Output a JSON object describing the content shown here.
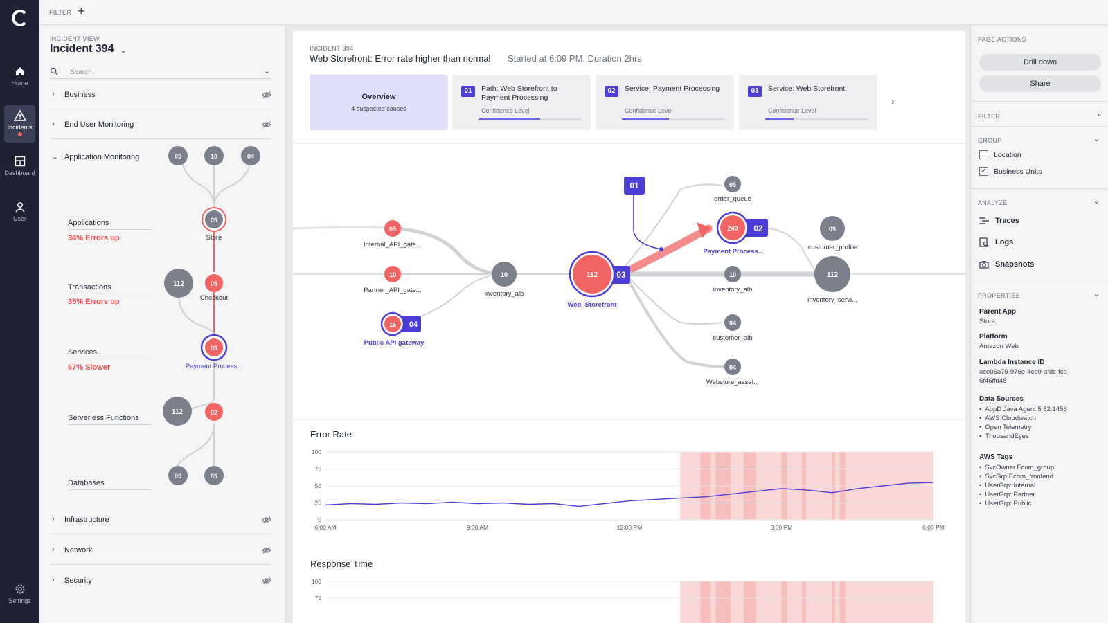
{
  "rail": {
    "items": [
      {
        "label": "Home",
        "icon": "home-icon"
      },
      {
        "label": "Incidents",
        "icon": "warning-icon",
        "active": true
      },
      {
        "label": "Dashboard",
        "icon": "dashboard-icon"
      },
      {
        "label": "User",
        "icon": "user-icon"
      }
    ],
    "settings_label": "Settings"
  },
  "topbar": {
    "filter_label": "FILTER",
    "add_symbol": "+"
  },
  "tree": {
    "view_label": "INCIDENT VIEW",
    "title": "Incident 394",
    "search_placeholder": "Search",
    "sections_top": [
      {
        "label": "Business",
        "collapsed": true,
        "hidden": true
      },
      {
        "label": "End User Monitoring",
        "collapsed": true,
        "hidden": true
      }
    ],
    "app_monitoring_label": "Application Monitoring",
    "tiers": [
      {
        "name": "Applications",
        "stat": "34% Errors up"
      },
      {
        "name": "Transactions",
        "stat": "35% Errors up"
      },
      {
        "name": "Services",
        "stat": "67% Slower"
      },
      {
        "name": "Serverless Functions",
        "stat": ""
      },
      {
        "name": "Databases",
        "stat": ""
      }
    ],
    "tree_nodes": {
      "top": [
        "05",
        "10",
        "04"
      ],
      "store": {
        "value": "05",
        "label": "Store"
      },
      "transactions_grey": "112",
      "checkout": {
        "value": "05",
        "label": "Checkout"
      },
      "payment": {
        "value": "05",
        "label": "Payment Process..."
      },
      "serverless_grey": "112",
      "serverless_red": "02",
      "db": [
        "05",
        "05"
      ]
    },
    "sections_bottom": [
      {
        "label": "Infrastructure",
        "collapsed": true,
        "hidden": true
      },
      {
        "label": "Network",
        "collapsed": true,
        "hidden": true
      },
      {
        "label": "Security",
        "collapsed": true,
        "hidden": true
      }
    ]
  },
  "main": {
    "incident_no": "INCIDENT 394",
    "title": "Web Storefront: Error rate higher than normal",
    "subtitle": "Started at 6:09 PM. Duration 2hrs",
    "overview": {
      "title": "Overview",
      "sub": "4 suspected causes"
    },
    "cards": [
      {
        "badge": "01",
        "head": "Path: Web Storefront to Payment Processing",
        "conf_label": "Confidence Level",
        "confidence": 0.6
      },
      {
        "badge": "02",
        "head": "Service: Payment Processing",
        "conf_label": "Confidence Level",
        "confidence": 0.46
      },
      {
        "badge": "03",
        "head": "Service: Web Storefront",
        "conf_label": "Confidence Level",
        "confidence": 0.28
      }
    ],
    "graph": {
      "nodes": [
        {
          "id": "internal",
          "value": "05",
          "label": "Internal_API_gate...",
          "kind": "red-small"
        },
        {
          "id": "partner",
          "value": "10",
          "label": "Partner_API_gate...",
          "kind": "red-small"
        },
        {
          "id": "public",
          "value": "16",
          "label": "Public API gateway",
          "kind": "red-ring",
          "badge": "04"
        },
        {
          "id": "inv_alb_l",
          "value": "10",
          "label": "inventory_alb",
          "kind": "grey"
        },
        {
          "id": "web",
          "value": "112",
          "label": "Web_Storefront",
          "kind": "red-big",
          "badge": "03"
        },
        {
          "id": "order",
          "value": "05",
          "label": "order_queue",
          "kind": "grey-small"
        },
        {
          "id": "payment",
          "value": "240",
          "label": "Payment Process...",
          "kind": "red-ring",
          "badge": "02"
        },
        {
          "id": "inv_alb_r",
          "value": "10",
          "label": "inventory_alb",
          "kind": "grey-small"
        },
        {
          "id": "cust_alb",
          "value": "04",
          "label": "customer_alb",
          "kind": "grey-small"
        },
        {
          "id": "webstore",
          "value": "04",
          "label": "Webstore_asset...",
          "kind": "grey-small"
        },
        {
          "id": "cust_prof",
          "value": "05",
          "label": "customer_profile",
          "kind": "grey"
        },
        {
          "id": "inv_serv",
          "value": "112",
          "label": "inventory_servi...",
          "kind": "grey-big"
        }
      ],
      "path_badge": "01"
    },
    "error_rate": {
      "title": "Error Rate"
    },
    "response_time": {
      "title": "Response Time"
    }
  },
  "chart_data": [
    {
      "type": "line",
      "title": "Error Rate",
      "xlabel": "",
      "ylabel": "",
      "x_ticks": [
        "6:00 AM",
        "9:00 AM",
        "12:00 PM",
        "3:00 PM",
        "6:00 PM"
      ],
      "y_ticks": [
        "100",
        "75",
        "50",
        "25",
        "0"
      ],
      "ylim": [
        0,
        100
      ],
      "x": [
        "6:00 AM",
        "6:30 AM",
        "7:00 AM",
        "7:30 AM",
        "8:00 AM",
        "8:30 AM",
        "9:00 AM",
        "9:30 AM",
        "10:00 AM",
        "10:30 AM",
        "11:00 AM",
        "11:30 AM",
        "12:00 PM",
        "12:30 PM",
        "1:00 PM",
        "1:30 PM",
        "2:00 PM",
        "2:30 PM",
        "3:00 PM",
        "3:30 PM",
        "4:00 PM",
        "4:30 PM",
        "5:00 PM",
        "5:30 PM",
        "6:00 PM"
      ],
      "series": [
        {
          "values": [
            22,
            24,
            23,
            25,
            24,
            26,
            24,
            25,
            23,
            24,
            20,
            24,
            28,
            30,
            32,
            34,
            38,
            42,
            46,
            44,
            40,
            46,
            50,
            54,
            55
          ]
        }
      ],
      "highlight_start": "1:00 PM",
      "highlight_color": "#f8c9c9"
    },
    {
      "type": "line",
      "title": "Response Time",
      "y_ticks": [
        "100",
        "75"
      ],
      "ylim": [
        0,
        100
      ],
      "highlight_start": "1:00 PM",
      "highlight_color": "#f8c9c9"
    }
  ],
  "right": {
    "page_actions_label": "PAGE ACTIONS",
    "drill_down": "Drill down",
    "share": "Share",
    "filter_label": "FILTER",
    "group_label": "GROUP",
    "group_options": [
      {
        "label": "Location",
        "checked": false
      },
      {
        "label": "Business Units",
        "checked": true
      }
    ],
    "analyze_label": "ANALYZE",
    "analyze_items": [
      "Traces",
      "Logs",
      "Snapshots"
    ],
    "properties_label": "PROPERTIES",
    "parent_app_key": "Parent App",
    "parent_app_val": "Store",
    "platform_key": "Platform",
    "platform_val": "Amazon Web",
    "lambda_key": "Lambda Instance ID",
    "lambda_val_1": "ace06a79-976e-4ec9-afdc-fcd",
    "lambda_val_2": "6f46ffd48",
    "data_sources_key": "Data Sources",
    "data_sources": [
      "AppD Java Agent 5 62.1456",
      "AWS Cloudwatch",
      "Open Telemetry",
      "ThousandEyes"
    ],
    "aws_tags_key": "AWS Tags",
    "aws_tags": [
      "SvcOwner.Ecom_group",
      "SvcGrp:Ecom_frontend",
      "UserGrp: Internal",
      "UserGrp: Partner",
      "UserGrp: Public"
    ]
  },
  "colors": {
    "accent": "#4a3ed6",
    "error": "#f26464",
    "grey_node": "#7c7f8c",
    "nav_bg": "#1e2233"
  }
}
